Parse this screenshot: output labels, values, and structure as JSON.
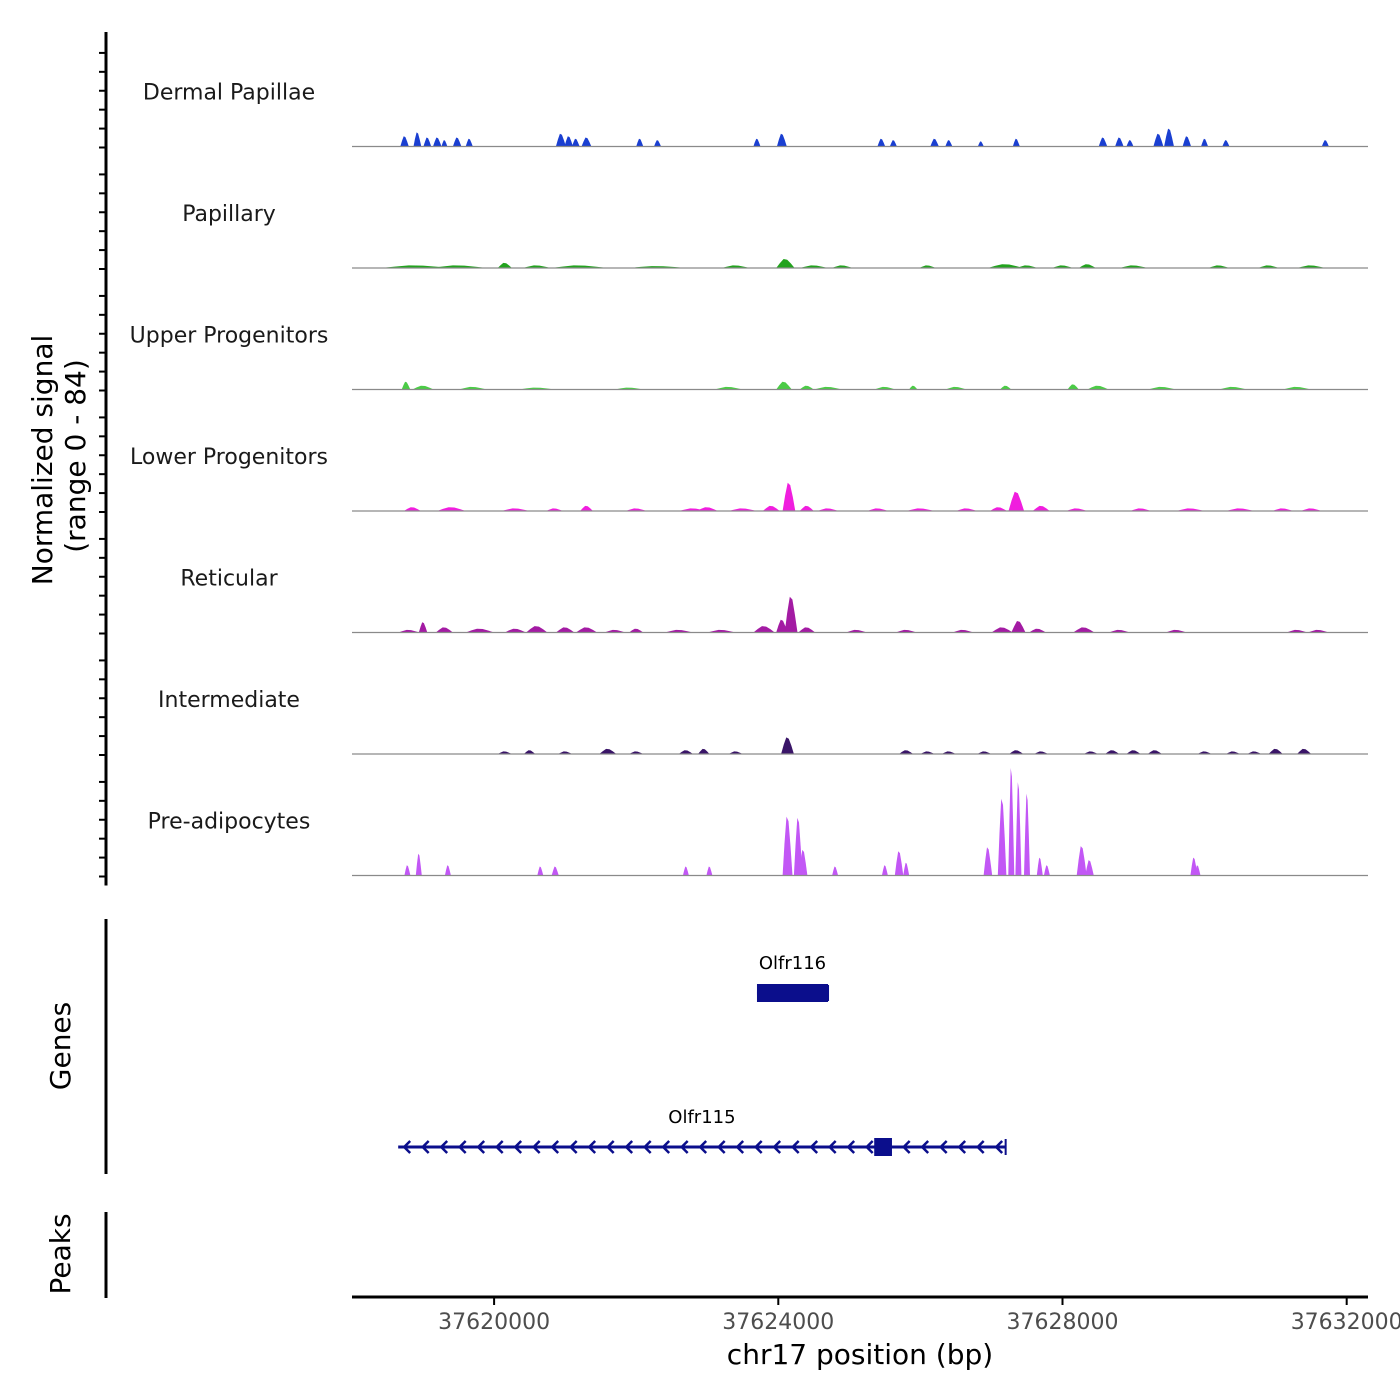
{
  "chart_data": {
    "type": "area",
    "title": "",
    "ylabel_line1": "Normalized signal",
    "ylabel_line2": "(range 0 - 84)",
    "y_range": [
      0,
      84
    ],
    "xlabel": "chr17 position (bp)",
    "xlim": [
      37618000,
      37632300
    ],
    "x_ticks": [
      37620000,
      37624000,
      37628000,
      37632000
    ],
    "x_tick_labels": [
      "37620000",
      "37624000",
      "37628000",
      "37632000"
    ],
    "tracks": [
      {
        "name": "Dermal Papillae",
        "color": "#1a3fd1",
        "peaks": [
          [
            37618740,
            8,
            60
          ],
          [
            37618920,
            11,
            55
          ],
          [
            37619060,
            7,
            55
          ],
          [
            37619200,
            7,
            60
          ],
          [
            37619300,
            5,
            40
          ],
          [
            37619480,
            7,
            60
          ],
          [
            37619650,
            6,
            50
          ],
          [
            37620940,
            10,
            70
          ],
          [
            37621050,
            8,
            60
          ],
          [
            37621150,
            6,
            55
          ],
          [
            37621300,
            7,
            70
          ],
          [
            37622050,
            6,
            50
          ],
          [
            37622300,
            5,
            50
          ],
          [
            37623700,
            6,
            50
          ],
          [
            37624050,
            10,
            70
          ],
          [
            37625450,
            6,
            55
          ],
          [
            37625620,
            5,
            50
          ],
          [
            37626200,
            6,
            60
          ],
          [
            37626400,
            5,
            50
          ],
          [
            37626850,
            4,
            40
          ],
          [
            37627350,
            6,
            50
          ],
          [
            37628570,
            7,
            60
          ],
          [
            37628800,
            7,
            60
          ],
          [
            37628950,
            5,
            50
          ],
          [
            37629350,
            10,
            70
          ],
          [
            37629500,
            14,
            70
          ],
          [
            37629750,
            8,
            60
          ],
          [
            37630000,
            6,
            50
          ],
          [
            37630300,
            5,
            50
          ],
          [
            37631700,
            5,
            50
          ]
        ]
      },
      {
        "name": "Papillary",
        "color": "#22a31e",
        "peaks": [
          [
            37618900,
            2,
            500
          ],
          [
            37619500,
            2,
            400
          ],
          [
            37620150,
            4,
            100
          ],
          [
            37620600,
            2,
            200
          ],
          [
            37621200,
            2,
            400
          ],
          [
            37622300,
            1.5,
            400
          ],
          [
            37623400,
            2,
            200
          ],
          [
            37624100,
            7,
            130
          ],
          [
            37624500,
            2,
            200
          ],
          [
            37624900,
            2,
            150
          ],
          [
            37626100,
            2,
            120
          ],
          [
            37627200,
            3,
            250
          ],
          [
            37627500,
            2,
            150
          ],
          [
            37628000,
            2,
            150
          ],
          [
            37628350,
            3,
            120
          ],
          [
            37629000,
            2,
            200
          ],
          [
            37630200,
            2,
            150
          ],
          [
            37630900,
            2,
            150
          ],
          [
            37631500,
            2,
            200
          ]
        ]
      },
      {
        "name": "Upper Progenitors",
        "color": "#4bcb46",
        "peaks": [
          [
            37618760,
            6,
            60
          ],
          [
            37619000,
            3,
            150
          ],
          [
            37619700,
            2,
            200
          ],
          [
            37620600,
            1.5,
            250
          ],
          [
            37621900,
            1.5,
            200
          ],
          [
            37623300,
            2,
            200
          ],
          [
            37624080,
            6,
            110
          ],
          [
            37624400,
            3,
            100
          ],
          [
            37624700,
            2,
            200
          ],
          [
            37625500,
            2,
            150
          ],
          [
            37625900,
            3,
            60
          ],
          [
            37626500,
            2,
            150
          ],
          [
            37627200,
            3,
            80
          ],
          [
            37628150,
            4,
            80
          ],
          [
            37628500,
            3,
            150
          ],
          [
            37629400,
            2,
            200
          ],
          [
            37630400,
            2,
            200
          ],
          [
            37631300,
            2,
            200
          ]
        ]
      },
      {
        "name": "Lower Progenitors",
        "color": "#f01ede",
        "peaks": [
          [
            37618850,
            3,
            120
          ],
          [
            37619400,
            3,
            200
          ],
          [
            37620300,
            2,
            200
          ],
          [
            37620850,
            2,
            120
          ],
          [
            37621300,
            4,
            90
          ],
          [
            37622000,
            2,
            150
          ],
          [
            37622800,
            2,
            200
          ],
          [
            37623000,
            3,
            150
          ],
          [
            37623500,
            2,
            200
          ],
          [
            37623900,
            4,
            120
          ],
          [
            37624150,
            22,
            90
          ],
          [
            37624400,
            4,
            100
          ],
          [
            37624700,
            2,
            150
          ],
          [
            37625400,
            2,
            150
          ],
          [
            37626000,
            2,
            200
          ],
          [
            37626650,
            2,
            150
          ],
          [
            37627100,
            3,
            120
          ],
          [
            37627350,
            15,
            110
          ],
          [
            37627700,
            4,
            120
          ],
          [
            37628200,
            2,
            150
          ],
          [
            37629100,
            2,
            150
          ],
          [
            37629800,
            2,
            200
          ],
          [
            37630500,
            2,
            200
          ],
          [
            37631100,
            2,
            150
          ],
          [
            37631500,
            2,
            150
          ]
        ]
      },
      {
        "name": "Reticular",
        "color": "#a31ba3",
        "peaks": [
          [
            37618800,
            2,
            150
          ],
          [
            37619000,
            8,
            60
          ],
          [
            37619300,
            4,
            120
          ],
          [
            37619800,
            3,
            200
          ],
          [
            37620300,
            3,
            150
          ],
          [
            37620600,
            5,
            150
          ],
          [
            37621000,
            4,
            130
          ],
          [
            37621300,
            4,
            150
          ],
          [
            37621700,
            2,
            150
          ],
          [
            37622000,
            3,
            100
          ],
          [
            37622600,
            2,
            200
          ],
          [
            37623200,
            2,
            200
          ],
          [
            37623800,
            5,
            150
          ],
          [
            37624050,
            10,
            80
          ],
          [
            37624180,
            28,
            90
          ],
          [
            37624400,
            4,
            120
          ],
          [
            37625100,
            2,
            150
          ],
          [
            37625800,
            2,
            150
          ],
          [
            37626600,
            2,
            150
          ],
          [
            37627150,
            4,
            150
          ],
          [
            37627380,
            9,
            100
          ],
          [
            37627650,
            3,
            120
          ],
          [
            37628300,
            4,
            150
          ],
          [
            37628800,
            2,
            150
          ],
          [
            37629600,
            2,
            150
          ],
          [
            37631300,
            2,
            150
          ],
          [
            37631600,
            2,
            150
          ]
        ]
      },
      {
        "name": "Intermediate",
        "color": "#3a1568",
        "peaks": [
          [
            37620150,
            2,
            100
          ],
          [
            37620500,
            3,
            80
          ],
          [
            37621000,
            2,
            100
          ],
          [
            37621600,
            4,
            120
          ],
          [
            37622000,
            2,
            100
          ],
          [
            37622700,
            3,
            100
          ],
          [
            37622950,
            4,
            80
          ],
          [
            37623400,
            2,
            100
          ],
          [
            37624130,
            13,
            90
          ],
          [
            37625800,
            3,
            100
          ],
          [
            37626100,
            2,
            100
          ],
          [
            37626400,
            2,
            100
          ],
          [
            37626900,
            2,
            100
          ],
          [
            37627350,
            3,
            100
          ],
          [
            37627700,
            2,
            100
          ],
          [
            37628400,
            2,
            100
          ],
          [
            37628700,
            3,
            100
          ],
          [
            37629000,
            3,
            100
          ],
          [
            37629300,
            3,
            100
          ],
          [
            37630000,
            2,
            100
          ],
          [
            37630400,
            2,
            100
          ],
          [
            37630700,
            2,
            100
          ],
          [
            37631000,
            4,
            100
          ],
          [
            37631400,
            4,
            100
          ]
        ]
      },
      {
        "name": "Pre-adipocytes",
        "color": "#c257f5",
        "peaks": [
          [
            37618780,
            8,
            40
          ],
          [
            37618940,
            17,
            30
          ],
          [
            37619350,
            8,
            40
          ],
          [
            37620650,
            7,
            40
          ],
          [
            37620860,
            7,
            50
          ],
          [
            37622700,
            7,
            40
          ],
          [
            37623030,
            7,
            40
          ],
          [
            37624130,
            46,
            70
          ],
          [
            37624280,
            45,
            60
          ],
          [
            37624350,
            20,
            60
          ],
          [
            37624800,
            7,
            40
          ],
          [
            37625500,
            8,
            40
          ],
          [
            37625700,
            19,
            60
          ],
          [
            37625800,
            10,
            40
          ],
          [
            37626950,
            22,
            60
          ],
          [
            37627150,
            60,
            60
          ],
          [
            37627280,
            84,
            40
          ],
          [
            37627380,
            73,
            40
          ],
          [
            37627500,
            64,
            40
          ],
          [
            37627680,
            14,
            40
          ],
          [
            37627780,
            8,
            40
          ],
          [
            37628270,
            23,
            70
          ],
          [
            37628380,
            12,
            60
          ],
          [
            37629850,
            14,
            50
          ],
          [
            37629900,
            8,
            40
          ]
        ]
      }
    ],
    "genes_label": "Genes",
    "genes": [
      {
        "name": "Olfr116",
        "strand": "-",
        "start": 37623700,
        "end": 37624700,
        "exons": [
          [
            37623700,
            37624700
          ]
        ]
      },
      {
        "name": "Olfr115",
        "strand": "-",
        "start": 37618650,
        "end": 37627200,
        "exons": [
          [
            37625350,
            37625600
          ]
        ]
      }
    ],
    "gene_color": "#0b0e8c",
    "peaks_label": "Peaks",
    "peaks_track": []
  }
}
